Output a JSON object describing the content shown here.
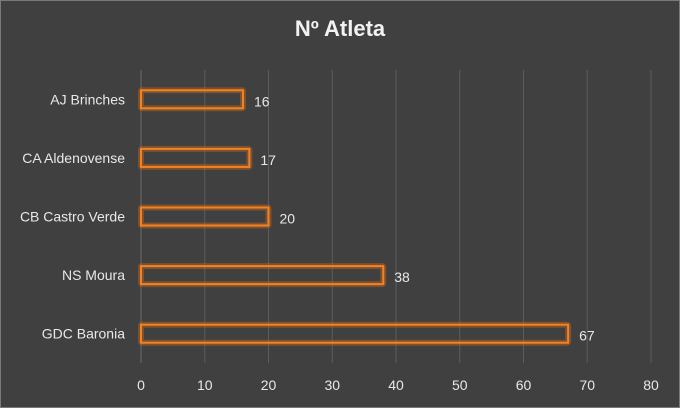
{
  "chart_data": {
    "type": "bar",
    "orientation": "horizontal",
    "title": "Nº Atleta",
    "categories": [
      "AJ Brinches",
      "CA Aldenovense",
      "CB Castro Verde",
      "NS Moura",
      "GDC Baronia"
    ],
    "values": [
      16,
      17,
      20,
      38,
      67
    ],
    "xlim": [
      0,
      80
    ],
    "xticks": [
      0,
      10,
      20,
      30,
      40,
      50,
      60,
      70,
      80
    ],
    "grid": "vertical",
    "legend": "none",
    "data_labels": true
  },
  "colors": {
    "background": "#404040",
    "bar_outline": "#f58220",
    "text": "#e8e8e8",
    "gridline": "#5c5c5c"
  }
}
